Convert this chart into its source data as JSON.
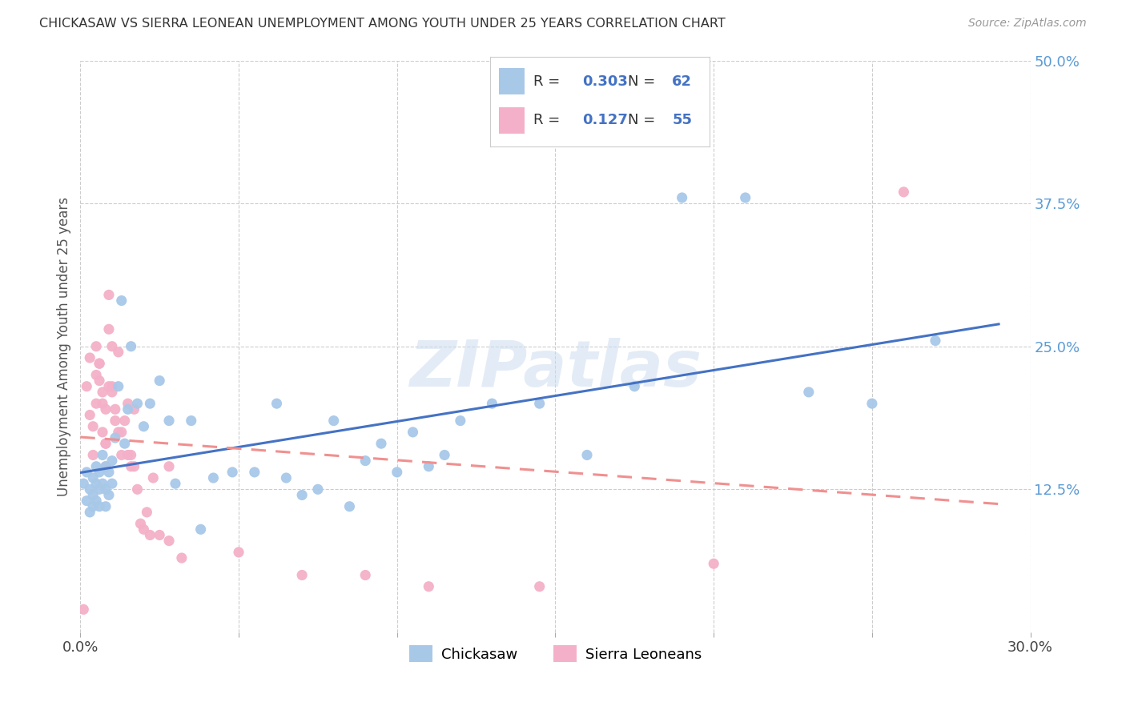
{
  "title": "CHICKASAW VS SIERRA LEONEAN UNEMPLOYMENT AMONG YOUTH UNDER 25 YEARS CORRELATION CHART",
  "source": "Source: ZipAtlas.com",
  "ylabel": "Unemployment Among Youth under 25 years",
  "xlim": [
    0.0,
    0.3
  ],
  "ylim": [
    0.0,
    0.5
  ],
  "xtick_positions": [
    0.0,
    0.05,
    0.1,
    0.15,
    0.2,
    0.25,
    0.3
  ],
  "xticklabels": [
    "0.0%",
    "",
    "",
    "",
    "",
    "",
    "30.0%"
  ],
  "yticks_right": [
    0.125,
    0.25,
    0.375,
    0.5
  ],
  "ytick_right_labels": [
    "12.5%",
    "25.0%",
    "37.5%",
    "50.0%"
  ],
  "chickasaw_color": "#a8c8e8",
  "sierra_color": "#f4b0c8",
  "chickasaw_line_color": "#4472c4",
  "sierra_line_color": "#f09090",
  "legend_text_color": "#4472c4",
  "R_chickasaw": 0.303,
  "N_chickasaw": 62,
  "R_sierra": 0.127,
  "N_sierra": 55,
  "background_color": "#ffffff",
  "watermark": "ZIPatlas",
  "grid_color": "#cccccc",
  "chickasaw_x": [
    0.001,
    0.002,
    0.002,
    0.003,
    0.003,
    0.004,
    0.004,
    0.004,
    0.005,
    0.005,
    0.005,
    0.006,
    0.006,
    0.006,
    0.007,
    0.007,
    0.008,
    0.008,
    0.008,
    0.009,
    0.009,
    0.01,
    0.01,
    0.011,
    0.012,
    0.013,
    0.014,
    0.015,
    0.016,
    0.018,
    0.02,
    0.022,
    0.025,
    0.028,
    0.03,
    0.035,
    0.038,
    0.042,
    0.048,
    0.055,
    0.062,
    0.07,
    0.08,
    0.09,
    0.1,
    0.11,
    0.12,
    0.13,
    0.145,
    0.16,
    0.175,
    0.19,
    0.21,
    0.23,
    0.25,
    0.27,
    0.065,
    0.075,
    0.085,
    0.095,
    0.105,
    0.115
  ],
  "chickasaw_y": [
    0.13,
    0.14,
    0.115,
    0.125,
    0.105,
    0.135,
    0.12,
    0.11,
    0.145,
    0.13,
    0.115,
    0.14,
    0.125,
    0.11,
    0.155,
    0.13,
    0.145,
    0.125,
    0.11,
    0.14,
    0.12,
    0.15,
    0.13,
    0.17,
    0.215,
    0.29,
    0.165,
    0.195,
    0.25,
    0.2,
    0.18,
    0.2,
    0.22,
    0.185,
    0.13,
    0.185,
    0.09,
    0.135,
    0.14,
    0.14,
    0.2,
    0.12,
    0.185,
    0.15,
    0.14,
    0.145,
    0.185,
    0.2,
    0.2,
    0.155,
    0.215,
    0.38,
    0.38,
    0.21,
    0.2,
    0.255,
    0.135,
    0.125,
    0.11,
    0.165,
    0.175,
    0.155
  ],
  "sierra_x": [
    0.001,
    0.002,
    0.003,
    0.003,
    0.004,
    0.004,
    0.005,
    0.005,
    0.006,
    0.006,
    0.007,
    0.007,
    0.008,
    0.008,
    0.009,
    0.009,
    0.01,
    0.01,
    0.011,
    0.012,
    0.013,
    0.014,
    0.015,
    0.016,
    0.017,
    0.018,
    0.02,
    0.022,
    0.025,
    0.028,
    0.005,
    0.006,
    0.007,
    0.008,
    0.008,
    0.009,
    0.01,
    0.011,
    0.012,
    0.013,
    0.015,
    0.016,
    0.017,
    0.019,
    0.021,
    0.023,
    0.028,
    0.032,
    0.05,
    0.07,
    0.09,
    0.11,
    0.145,
    0.2,
    0.26
  ],
  "sierra_y": [
    0.02,
    0.215,
    0.24,
    0.19,
    0.18,
    0.155,
    0.225,
    0.2,
    0.235,
    0.22,
    0.2,
    0.175,
    0.165,
    0.145,
    0.295,
    0.265,
    0.25,
    0.21,
    0.195,
    0.175,
    0.155,
    0.185,
    0.155,
    0.155,
    0.145,
    0.125,
    0.09,
    0.085,
    0.085,
    0.145,
    0.25,
    0.235,
    0.21,
    0.195,
    0.165,
    0.215,
    0.215,
    0.185,
    0.245,
    0.175,
    0.2,
    0.145,
    0.195,
    0.095,
    0.105,
    0.135,
    0.08,
    0.065,
    0.07,
    0.05,
    0.05,
    0.04,
    0.04,
    0.06,
    0.385
  ]
}
